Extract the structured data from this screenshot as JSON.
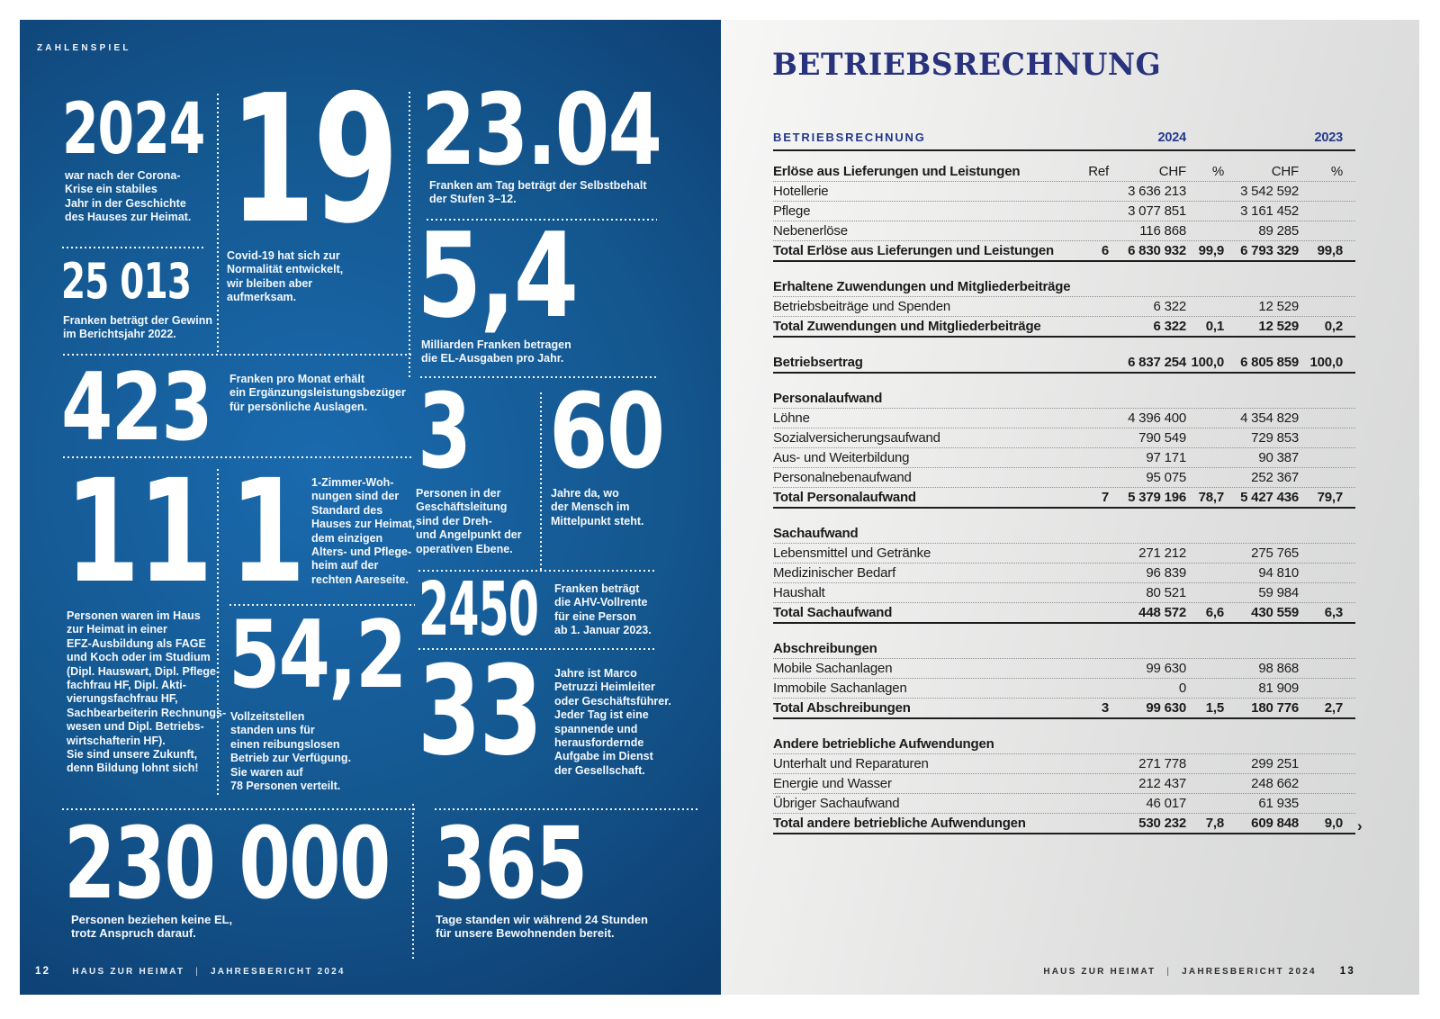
{
  "colors": {
    "left_page_blue_center": "#1a6aae",
    "left_page_blue_edge": "#0b2c53",
    "right_page_gray": "#dedfde",
    "title_blue": "#28327d",
    "table_header_blue": "#24388a"
  },
  "page_left": {
    "kicker": "ZAHLENSPIEL",
    "stats": [
      {
        "value": "2024",
        "caption": "war nach der Corona-\nKrise ein stabiles\nJahr in der Geschichte\ndes Hauses zur Heimat."
      },
      {
        "value": "25 013",
        "caption": "Franken beträgt der Gewinn\nim Berichtsjahr 2022."
      },
      {
        "value": "19",
        "caption": "Covid-19 hat sich zur\nNormalität entwickelt,\nwir bleiben aber\naufmerksam."
      },
      {
        "value": "23.04",
        "caption": "Franken am Tag beträgt der Selbstbehalt\nder Stufen 3–12."
      },
      {
        "value": "5,4",
        "caption": "Milliarden Franken betragen\ndie EL-Ausgaben pro Jahr."
      },
      {
        "value": "423",
        "caption": "Franken pro Monat erhält\nein Ergänzungsleistungsbezüger\nfür persönliche Auslagen."
      },
      {
        "value": "11",
        "caption": "Personen waren im Haus\nzur Heimat in einer\nEFZ-Ausbildung als FAGE\nund Koch oder im Studium\n(Dipl. Hauswart, Dipl. Pflege-\nfachfrau HF, Dipl. Akti-\nvierungsfachfrau HF,\nSachbearbeiterin Rechnungs-\nwesen und Dipl. Betriebs-\nwirtschafterin HF).\nSie sind unsere Zukunft,\ndenn Bildung lohnt sich!"
      },
      {
        "value": "1",
        "caption": "1-Zimmer-Woh-\nnungen sind der\nStandard des\nHauses zur Heimat,\ndem einzigen\nAlters- und Pflege-\nheim auf der\nrechten Aareseite."
      },
      {
        "value": "54,2",
        "caption": "Vollzeitstellen\nstanden uns für\neinen reibungslosen\nBetrieb zur Verfügung.\nSie waren auf\n78 Personen verteilt."
      },
      {
        "value": "3",
        "caption": "Personen in der\nGeschäftsleitung\nsind der Dreh-\nund Angelpunkt der\noperativen Ebene."
      },
      {
        "value": "60",
        "caption": "Jahre da, wo\nder Mensch im\nMittelpunkt steht."
      },
      {
        "value": "2450",
        "caption": "Franken beträgt\ndie AHV-Vollrente\nfür eine Person\nab 1. Januar 2023."
      },
      {
        "value": "33",
        "caption": "Jahre ist Marco\nPetruzzi Heimleiter\noder Geschäftsführer.\nJeder Tag ist eine\nspannende und\nherausfordernde\nAufgabe im Dienst\nder Gesellschaft."
      },
      {
        "value": "230 000",
        "caption": "Personen beziehen keine EL,\ntrotz Anspruch darauf."
      },
      {
        "value": "365",
        "caption": "Tage standen wir während 24 Stunden\nfür unsere Bewohnenden bereit."
      }
    ],
    "footer": {
      "page": "12",
      "brand": "HAUS ZUR HEIMAT",
      "sep": "|",
      "report": "JAHRESBERICHT 2024"
    }
  },
  "page_right": {
    "title": "BETRIEBSRECHNUNG",
    "chevron": "›",
    "table": {
      "header": {
        "label": "BETRIEBSRECHNUNG",
        "year1": "2024",
        "year2": "2023"
      },
      "rows": [
        {
          "style": "colhead",
          "name": "Erlöse aus Lieferungen und Leistungen",
          "ref": "Ref",
          "chf1": "CHF",
          "pct1": "%",
          "chf2": "CHF",
          "pct2": "%"
        },
        {
          "style": "row",
          "name": "Hotellerie",
          "chf1": "3 636 213",
          "chf2": "3 542 592"
        },
        {
          "style": "row",
          "name": "Pflege",
          "chf1": "3 077 851",
          "chf2": "3 161 452"
        },
        {
          "style": "row",
          "name": "Nebenerlöse",
          "chf1": "116 868",
          "chf2": "89 285"
        },
        {
          "style": "total",
          "name": "Total Erlöse aus Lieferungen und Leistungen",
          "ref": "6",
          "chf1": "6 830 932",
          "pct1": "99,9",
          "chf2": "6 793 329",
          "pct2": "99,8"
        },
        {
          "style": "gap"
        },
        {
          "style": "section",
          "name": "Erhaltene Zuwendungen und Mitgliederbeiträge"
        },
        {
          "style": "row",
          "name": "Betriebsbeiträge und Spenden",
          "chf1": "6 322",
          "chf2": "12 529"
        },
        {
          "style": "total",
          "name": "Total Zuwendungen und Mitgliederbeiträge",
          "chf1": "6 322",
          "pct1": "0,1",
          "chf2": "12 529",
          "pct2": "0,2"
        },
        {
          "style": "gap"
        },
        {
          "style": "total",
          "name": "Betriebsertrag",
          "chf1": "6 837 254",
          "pct1": "100,0",
          "chf2": "6 805 859",
          "pct2": "100,0"
        },
        {
          "style": "gap"
        },
        {
          "style": "section",
          "name": "Personalaufwand"
        },
        {
          "style": "row",
          "name": "Löhne",
          "chf1": "4 396 400",
          "chf2": "4 354 829"
        },
        {
          "style": "row",
          "name": "Sozialversicherungsaufwand",
          "chf1": "790 549",
          "chf2": "729 853"
        },
        {
          "style": "row",
          "name": "Aus- und Weiterbildung",
          "chf1": "97 171",
          "chf2": "90 387"
        },
        {
          "style": "row",
          "name": "Personalnebenaufwand",
          "chf1": "95 075",
          "chf2": "252 367"
        },
        {
          "style": "total",
          "name": "Total Personalaufwand",
          "ref": "7",
          "chf1": "5 379 196",
          "pct1": "78,7",
          "chf2": "5 427 436",
          "pct2": "79,7"
        },
        {
          "style": "gap"
        },
        {
          "style": "section",
          "name": "Sachaufwand"
        },
        {
          "style": "row",
          "name": "Lebensmittel und Getränke",
          "chf1": "271 212",
          "chf2": "275 765"
        },
        {
          "style": "row",
          "name": "Medizinischer Bedarf",
          "chf1": "96 839",
          "chf2": "94 810"
        },
        {
          "style": "row",
          "name": "Haushalt",
          "chf1": "80 521",
          "chf2": "59 984"
        },
        {
          "style": "total",
          "name": "Total Sachaufwand",
          "chf1": "448 572",
          "pct1": "6,6",
          "chf2": "430 559",
          "pct2": "6,3"
        },
        {
          "style": "gap"
        },
        {
          "style": "section",
          "name": "Abschreibungen"
        },
        {
          "style": "row",
          "name": "Mobile Sachanlagen",
          "chf1": "99 630",
          "chf2": "98 868"
        },
        {
          "style": "row",
          "name": "Immobile Sachanlagen",
          "chf1": "0",
          "chf2": "81 909"
        },
        {
          "style": "total",
          "name": "Total Abschreibungen",
          "ref": "3",
          "chf1": "99 630",
          "pct1": "1,5",
          "chf2": "180 776",
          "pct2": "2,7"
        },
        {
          "style": "gap"
        },
        {
          "style": "section",
          "name": "Andere betriebliche Aufwendungen"
        },
        {
          "style": "row",
          "name": "Unterhalt und Reparaturen",
          "chf1": "271 778",
          "chf2": "299 251"
        },
        {
          "style": "row",
          "name": "Energie und Wasser",
          "chf1": "212 437",
          "chf2": "248 662"
        },
        {
          "style": "row",
          "name": "Übriger Sachaufwand",
          "chf1": "46 017",
          "chf2": "61 935"
        },
        {
          "style": "total",
          "name": "Total andere betriebliche Aufwendungen",
          "chf1": "530 232",
          "pct1": "7,8",
          "chf2": "609 848",
          "pct2": "9,0"
        }
      ]
    },
    "footer": {
      "brand": "HAUS ZUR HEIMAT",
      "sep": "|",
      "report": "JAHRESBERICHT 2024",
      "page": "13"
    }
  }
}
